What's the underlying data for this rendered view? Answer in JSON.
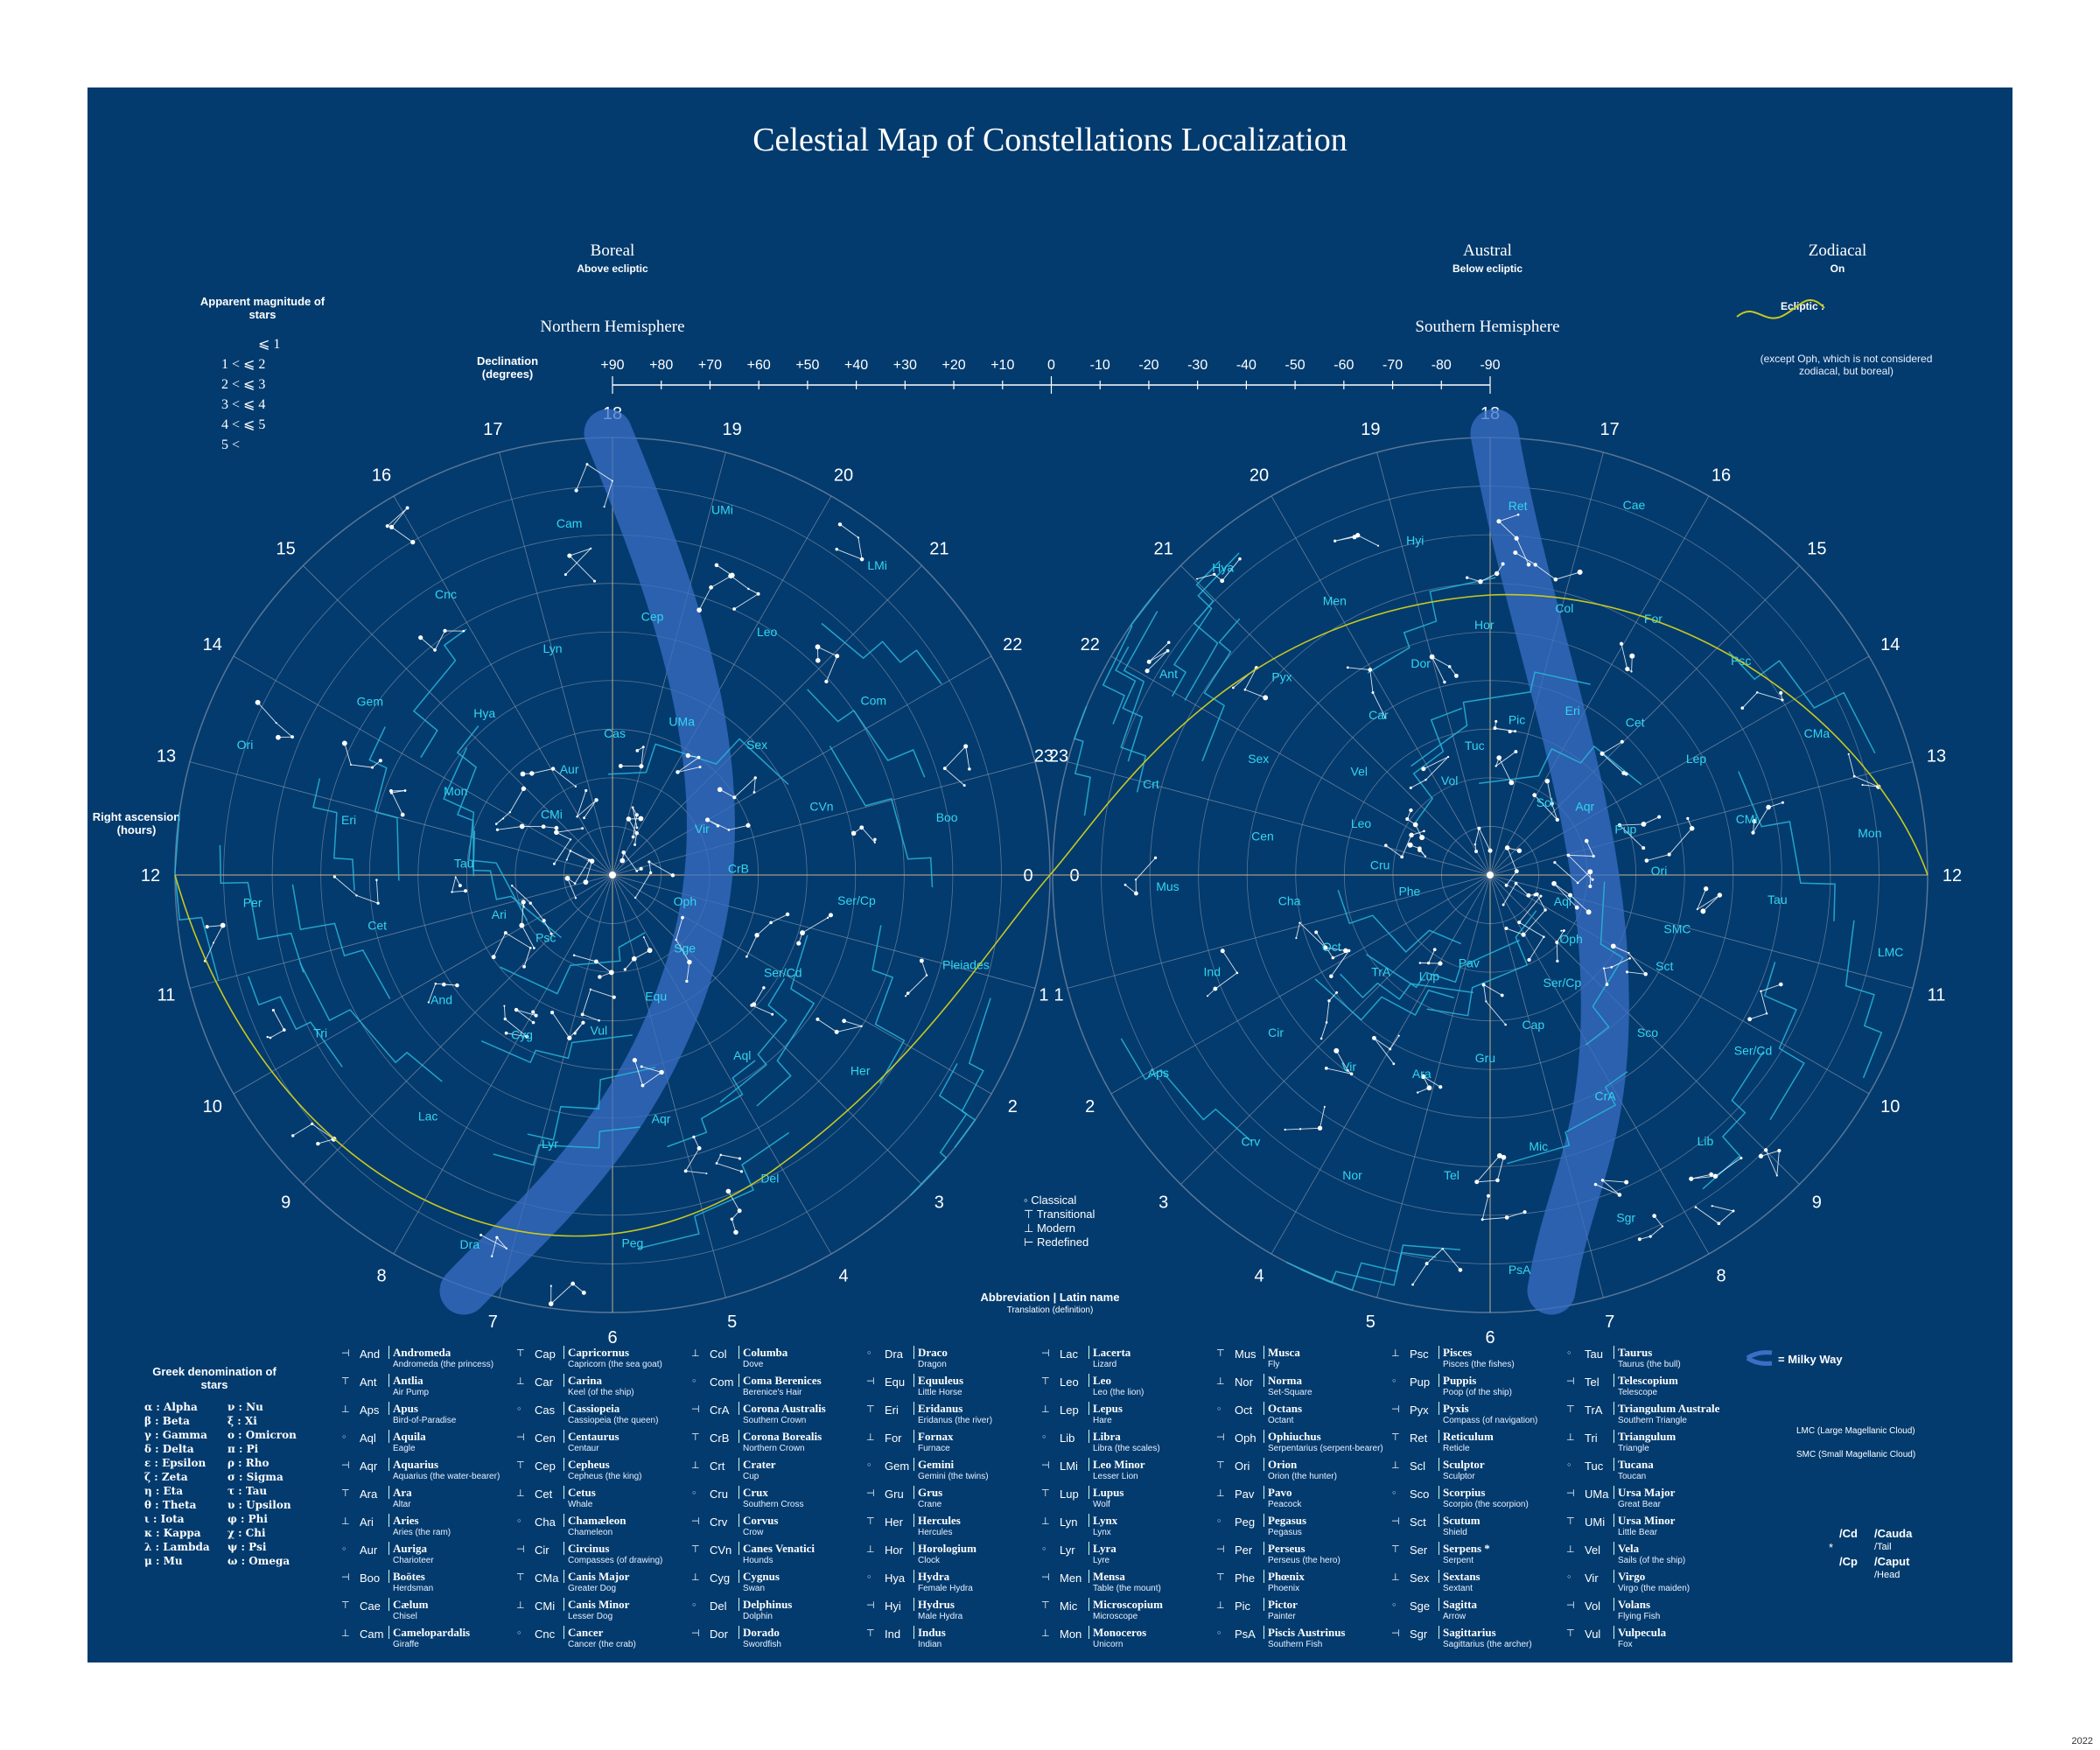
{
  "title": "Celestial Map of Constellations Localization",
  "boreal": {
    "title": "Boreal",
    "sub": "Above ecliptic"
  },
  "austral": {
    "title": "Austral",
    "sub": "Below ecliptic"
  },
  "zodiacal": {
    "title": "Zodiacal",
    "sub": "On",
    "ecliptic_label": "Ecliptic :",
    "note": "(except Oph, which is not considered zodiacal, but boreal)"
  },
  "northern": "Northern Hemisphere",
  "southern": "Southern Hemisphere",
  "declination": {
    "label": "Declination (degrees)",
    "ticks": [
      "+90",
      "+80",
      "+70",
      "+60",
      "+50",
      "+40",
      "+30",
      "+20",
      "+10",
      "0",
      "-10",
      "-20",
      "-30",
      "-40",
      "-50",
      "-60",
      "-70",
      "-80",
      "-90"
    ]
  },
  "ra_label": "Right ascension (hours)",
  "magnitude": {
    "title": "Apparent magnitude of stars",
    "rows": [
      "⩽ 1",
      "1 <   ⩽ 2",
      "2 <   ⩽ 3",
      "3 <   ⩽ 4",
      "4 <   ⩽ 5",
      "5 <"
    ]
  },
  "north_hours": [
    "18",
    "19",
    "20",
    "21",
    "22",
    "23",
    "0",
    "1",
    "2",
    "3",
    "4",
    "5",
    "6",
    "7",
    "8",
    "9",
    "10",
    "11",
    "12",
    "13",
    "14",
    "15",
    "16",
    "17"
  ],
  "south_hours": [
    "18",
    "17",
    "16",
    "15",
    "14",
    "13",
    "12",
    "11",
    "10",
    "9",
    "8",
    "7",
    "6",
    "5",
    "4",
    "3",
    "2",
    "1",
    "0",
    "23",
    "22",
    "21",
    "20",
    "19"
  ],
  "north_labels": [
    "Oph",
    "Ser/Cd",
    "Her",
    "Sge",
    "Aql",
    "Del",
    "Equ",
    "Aqr",
    "Peg",
    "Vul",
    "Lyr",
    "Dra",
    "Cyg",
    "Lac",
    "Psc",
    "And",
    "Tri",
    "Ari",
    "Cet",
    "Per",
    "Tau",
    "Eri",
    "Ori",
    "Mon",
    "Gem",
    "CMi",
    "Hya",
    "Cnc",
    "Aur",
    "Lyn",
    "Cam",
    "Cas",
    "Cep",
    "UMi",
    "UMa",
    "Leo",
    "LMi",
    "Sex",
    "Com",
    "Vir",
    "CVn",
    "Boo",
    "CrB",
    "Ser/Cp",
    "Pleiades"
  ],
  "south_labels": [
    "Aql",
    "Sct",
    "Ser/Cd",
    "Oph",
    "Sco",
    "Lib",
    "Ser/Cp",
    "CrA",
    "Sgr",
    "Cap",
    "Mic",
    "PsA",
    "Gru",
    "Tel",
    "Pav",
    "Ara",
    "Nor",
    "Lup",
    "Vir",
    "Crv",
    "TrA",
    "Cir",
    "Aps",
    "Oct",
    "Ind",
    "Phe",
    "Cha",
    "Mus",
    "Cru",
    "Cen",
    "Crt",
    "Leo",
    "Sex",
    "Ant",
    "Vel",
    "Pyx",
    "Hya",
    "Car",
    "Men",
    "Vol",
    "Dor",
    "Hyi",
    "Tuc",
    "Hor",
    "Ret",
    "Pic",
    "Col",
    "Cae",
    "Eri",
    "For",
    "Scl",
    "Cet",
    "Psc",
    "Aqr",
    "Lep",
    "CMa",
    "Pup",
    "CMi",
    "Mon",
    "Ori",
    "Tau",
    "LMC",
    "SMC"
  ],
  "symbols_legend": [
    "Classical",
    "Transitional",
    "Modern",
    "Redefined"
  ],
  "abbrev_legend": {
    "title": "Abbreviation | Latin name",
    "sub": "Translation (definition)"
  },
  "greek": {
    "title": "Greek denomination of stars",
    "left": [
      "α : Alpha",
      "β : Beta",
      "γ : Gamma",
      "δ : Delta",
      "ε : Epsilon",
      "ζ : Zeta",
      "η : Eta",
      "θ : Theta",
      "ι : Iota",
      "κ : Kappa",
      "λ : Lambda",
      "μ : Mu"
    ],
    "right": [
      "ν : Nu",
      "ξ : Xi",
      "ο : Omicron",
      "π : Pi",
      "ρ : Rho",
      "σ : Sigma",
      "τ : Tau",
      "υ : Upsilon",
      "φ : Phi",
      "χ : Chi",
      "ψ : Psi",
      "ω : Omega"
    ]
  },
  "constellations": [
    [
      [
        "And",
        "Andromeda",
        "Andromeda (the princess)"
      ],
      [
        "Ant",
        "Antlia",
        "Air Pump"
      ],
      [
        "Aps",
        "Apus",
        "Bird-of-Paradise"
      ],
      [
        "Aql",
        "Aquila",
        "Eagle"
      ],
      [
        "Aqr",
        "Aquarius",
        "Aquarius (the water-bearer)"
      ],
      [
        "Ara",
        "Ara",
        "Altar"
      ],
      [
        "Ari",
        "Aries",
        "Aries (the ram)"
      ],
      [
        "Aur",
        "Auriga",
        "Charioteer"
      ],
      [
        "Boo",
        "Boötes",
        "Herdsman"
      ],
      [
        "Cae",
        "Cælum",
        "Chisel"
      ],
      [
        "Cam",
        "Camelopardalis",
        "Giraffe"
      ]
    ],
    [
      [
        "Cap",
        "Capricornus",
        "Capricorn (the sea goat)"
      ],
      [
        "Car",
        "Carina",
        "Keel (of the ship)"
      ],
      [
        "Cas",
        "Cassiopeia",
        "Cassiopeia (the queen)"
      ],
      [
        "Cen",
        "Centaurus",
        "Centaur"
      ],
      [
        "Cep",
        "Cepheus",
        "Cepheus (the king)"
      ],
      [
        "Cet",
        "Cetus",
        "Whale"
      ],
      [
        "Cha",
        "Chamæleon",
        "Chameleon"
      ],
      [
        "Cir",
        "Circinus",
        "Compasses (of drawing)"
      ],
      [
        "CMa",
        "Canis Major",
        "Greater Dog"
      ],
      [
        "CMi",
        "Canis Minor",
        "Lesser Dog"
      ],
      [
        "Cnc",
        "Cancer",
        "Cancer (the crab)"
      ]
    ],
    [
      [
        "Col",
        "Columba",
        "Dove"
      ],
      [
        "Com",
        "Coma Berenices",
        "Berenice's Hair"
      ],
      [
        "CrA",
        "Corona Australis",
        "Southern Crown"
      ],
      [
        "CrB",
        "Corona Borealis",
        "Northern Crown"
      ],
      [
        "Crt",
        "Crater",
        "Cup"
      ],
      [
        "Cru",
        "Crux",
        "Southern Cross"
      ],
      [
        "Crv",
        "Corvus",
        "Crow"
      ],
      [
        "CVn",
        "Canes Venatici",
        "Hounds"
      ],
      [
        "Cyg",
        "Cygnus",
        "Swan"
      ],
      [
        "Del",
        "Delphinus",
        "Dolphin"
      ],
      [
        "Dor",
        "Dorado",
        "Swordfish"
      ]
    ],
    [
      [
        "Dra",
        "Draco",
        "Dragon"
      ],
      [
        "Equ",
        "Equuleus",
        "Little Horse"
      ],
      [
        "Eri",
        "Eridanus",
        "Eridanus (the river)"
      ],
      [
        "For",
        "Fornax",
        "Furnace"
      ],
      [
        "Gem",
        "Gemini",
        "Gemini (the twins)"
      ],
      [
        "Gru",
        "Grus",
        "Crane"
      ],
      [
        "Her",
        "Hercules",
        "Hercules"
      ],
      [
        "Hor",
        "Horologium",
        "Clock"
      ],
      [
        "Hya",
        "Hydra",
        "Female Hydra"
      ],
      [
        "Hyi",
        "Hydrus",
        "Male Hydra"
      ],
      [
        "Ind",
        "Indus",
        "Indian"
      ]
    ],
    [
      [
        "Lac",
        "Lacerta",
        "Lizard"
      ],
      [
        "Leo",
        "Leo",
        "Leo (the lion)"
      ],
      [
        "Lep",
        "Lepus",
        "Hare"
      ],
      [
        "Lib",
        "Libra",
        "Libra (the scales)"
      ],
      [
        "LMi",
        "Leo Minor",
        "Lesser Lion"
      ],
      [
        "Lup",
        "Lupus",
        "Wolf"
      ],
      [
        "Lyn",
        "Lynx",
        "Lynx"
      ],
      [
        "Lyr",
        "Lyra",
        "Lyre"
      ],
      [
        "Men",
        "Mensa",
        "Table (the mount)"
      ],
      [
        "Mic",
        "Microscopium",
        "Microscope"
      ],
      [
        "Mon",
        "Monoceros",
        "Unicorn"
      ]
    ],
    [
      [
        "Mus",
        "Musca",
        "Fly"
      ],
      [
        "Nor",
        "Norma",
        "Set-Square"
      ],
      [
        "Oct",
        "Octans",
        "Octant"
      ],
      [
        "Oph",
        "Ophiuchus",
        "Serpentarius (serpent-bearer)"
      ],
      [
        "Ori",
        "Orion",
        "Orion (the hunter)"
      ],
      [
        "Pav",
        "Pavo",
        "Peacock"
      ],
      [
        "Peg",
        "Pegasus",
        "Pegasus"
      ],
      [
        "Per",
        "Perseus",
        "Perseus (the hero)"
      ],
      [
        "Phe",
        "Phœnix",
        "Phoenix"
      ],
      [
        "Pic",
        "Pictor",
        "Painter"
      ],
      [
        "PsA",
        "Piscis Austrinus",
        "Southern Fish"
      ]
    ],
    [
      [
        "Psc",
        "Pisces",
        "Pisces (the fishes)"
      ],
      [
        "Pup",
        "Puppis",
        "Poop (of the ship)"
      ],
      [
        "Pyx",
        "Pyxis",
        "Compass (of navigation)"
      ],
      [
        "Ret",
        "Reticulum",
        "Reticle"
      ],
      [
        "Scl",
        "Sculptor",
        "Sculptor"
      ],
      [
        "Sco",
        "Scorpius",
        "Scorpio (the scorpion)"
      ],
      [
        "Sct",
        "Scutum",
        "Shield"
      ],
      [
        "Ser",
        "Serpens *",
        "Serpent"
      ],
      [
        "Sex",
        "Sextans",
        "Sextant"
      ],
      [
        "Sge",
        "Sagitta",
        "Arrow"
      ],
      [
        "Sgr",
        "Sagittarius",
        "Sagittarius (the archer)"
      ]
    ],
    [
      [
        "Tau",
        "Taurus",
        "Taurus (the bull)"
      ],
      [
        "Tel",
        "Telescopium",
        "Telescope"
      ],
      [
        "TrA",
        "Triangulum Australe",
        "Southern Triangle"
      ],
      [
        "Tri",
        "Triangulum",
        "Triangle"
      ],
      [
        "Tuc",
        "Tucana",
        "Toucan"
      ],
      [
        "UMa",
        "Ursa Major",
        "Great Bear"
      ],
      [
        "UMi",
        "Ursa Minor",
        "Little Bear"
      ],
      [
        "Vel",
        "Vela",
        "Sails (of the ship)"
      ],
      [
        "Vir",
        "Virgo",
        "Virgo (the maiden)"
      ],
      [
        "Vol",
        "Volans",
        "Flying Fish"
      ],
      [
        "Vul",
        "Vulpecula",
        "Fox"
      ]
    ]
  ],
  "milky_way": "= Milky Way",
  "lmc": "LMC (Large Magellanic Cloud)",
  "smc": "SMC (Small Magellanic Cloud)",
  "serpens": {
    "cd": "/Cd",
    "cd_name": "/Cauda",
    "cd_tr": "/Tail",
    "cp": "/Cp",
    "cp_name": "/Caput",
    "cp_tr": "/Head"
  },
  "footer": "2022"
}
